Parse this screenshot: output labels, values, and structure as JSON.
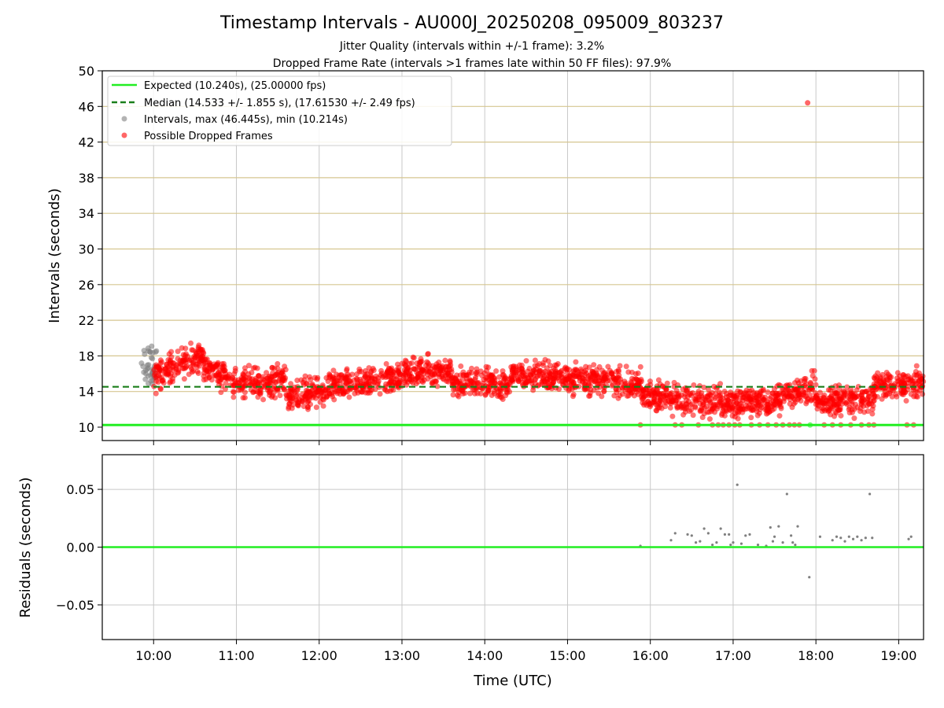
{
  "chart_data": {
    "type": "scatter",
    "title": "Timestamp Intervals - AU000J_20250208_095009_803237",
    "subtitle_lines": [
      "Jitter Quality (intervals within +/-1 frame): 3.2%",
      "Dropped Frame Rate (intervals >1 frames late within 50 FF files): 97.9%"
    ],
    "xlabel": "Time (UTC)",
    "x_ticks": [
      "10:00",
      "11:00",
      "12:00",
      "13:00",
      "14:00",
      "15:00",
      "16:00",
      "17:00",
      "18:00",
      "19:00"
    ],
    "x_range_hours": [
      9.38,
      19.3
    ],
    "colors": {
      "expected": "#22ee22",
      "median": "#1a7f1a",
      "intervals": "#808080",
      "dropped": "#ff0000",
      "band": "#d6c690",
      "grid": "#c8c8c8"
    },
    "top_panel": {
      "ylabel": "Intervals (seconds)",
      "ylim": [
        8.5,
        50
      ],
      "y_ticks": [
        10,
        14,
        18,
        22,
        26,
        30,
        34,
        38,
        42,
        46,
        50
      ],
      "expected_line": 10.24,
      "median_line": 14.533,
      "legend": [
        "Expected (10.240s), (25.00000 fps)",
        "Median (14.533 +/- 1.855 s), (17.61530 +/- 2.49 fps)",
        "Intervals, max (46.445s), min (10.214s)",
        "Possible Dropped Frames"
      ],
      "legend_position": "upper-left",
      "outlier_points": [
        {
          "t": 17.9,
          "v": 46.4
        }
      ],
      "gray_cluster": {
        "t_range": [
          9.85,
          10.05
        ],
        "v_range": [
          14.8,
          19.1
        ]
      },
      "trend_segments": [
        {
          "t0": 10.0,
          "t1": 10.3,
          "v0": 15.4,
          "v1": 17.2
        },
        {
          "t0": 10.3,
          "t1": 10.6,
          "v0": 17.2,
          "v1": 17.8
        },
        {
          "t0": 10.6,
          "t1": 11.0,
          "v0": 17.0,
          "v1": 15.0
        },
        {
          "t0": 11.0,
          "t1": 11.6,
          "v0": 15.0,
          "v1": 15.3
        },
        {
          "t0": 11.6,
          "t1": 12.1,
          "v0": 13.2,
          "v1": 14.2
        },
        {
          "t0": 12.1,
          "t1": 13.0,
          "v0": 14.5,
          "v1": 15.5
        },
        {
          "t0": 13.0,
          "t1": 13.6,
          "v0": 16.0,
          "v1": 16.3
        },
        {
          "t0": 13.6,
          "t1": 14.3,
          "v0": 15.2,
          "v1": 14.8
        },
        {
          "t0": 14.3,
          "t1": 15.2,
          "v0": 15.8,
          "v1": 15.5
        },
        {
          "t0": 15.2,
          "t1": 15.9,
          "v0": 15.3,
          "v1": 14.8
        },
        {
          "t0": 15.9,
          "t1": 16.5,
          "v0": 13.8,
          "v1": 13.0
        },
        {
          "t0": 16.5,
          "t1": 17.5,
          "v0": 12.8,
          "v1": 12.8
        },
        {
          "t0": 17.5,
          "t1": 18.0,
          "v0": 13.0,
          "v1": 14.5
        },
        {
          "t0": 18.0,
          "t1": 18.7,
          "v0": 12.8,
          "v1": 13.2
        },
        {
          "t0": 18.7,
          "t1": 19.3,
          "v0": 14.5,
          "v1": 15.0
        }
      ],
      "bottom_dropped_points": [
        15.88,
        16.3,
        16.38,
        16.58,
        16.75,
        16.82,
        16.88,
        16.95,
        17.02,
        17.08,
        17.22,
        17.32,
        17.42,
        17.52,
        17.6,
        17.68,
        17.74,
        17.8,
        18.1,
        18.2,
        18.3,
        18.42,
        18.55,
        18.64,
        18.7,
        19.1,
        19.18
      ]
    },
    "bottom_panel": {
      "ylabel": "Residuals (seconds)",
      "ylim": [
        -0.08,
        0.08
      ],
      "y_ticks": [
        "0.05",
        "0.00",
        "−0.05"
      ],
      "y_tick_values": [
        0.05,
        0.0,
        -0.05
      ],
      "zero_line": 0.0,
      "points": [
        {
          "t": 15.88,
          "v": 0.001
        },
        {
          "t": 16.25,
          "v": 0.006
        },
        {
          "t": 16.3,
          "v": 0.012
        },
        {
          "t": 16.45,
          "v": 0.011
        },
        {
          "t": 16.5,
          "v": 0.01
        },
        {
          "t": 16.55,
          "v": 0.004
        },
        {
          "t": 16.6,
          "v": 0.005
        },
        {
          "t": 16.65,
          "v": 0.016
        },
        {
          "t": 16.7,
          "v": 0.012
        },
        {
          "t": 16.75,
          "v": 0.002
        },
        {
          "t": 16.8,
          "v": 0.004
        },
        {
          "t": 16.85,
          "v": 0.016
        },
        {
          "t": 16.9,
          "v": 0.011
        },
        {
          "t": 16.95,
          "v": 0.011
        },
        {
          "t": 16.97,
          "v": 0.002
        },
        {
          "t": 17.0,
          "v": 0.004
        },
        {
          "t": 17.05,
          "v": 0.054
        },
        {
          "t": 17.1,
          "v": 0.003
        },
        {
          "t": 17.15,
          "v": 0.01
        },
        {
          "t": 17.2,
          "v": 0.011
        },
        {
          "t": 17.3,
          "v": 0.002
        },
        {
          "t": 17.4,
          "v": 0.001
        },
        {
          "t": 17.45,
          "v": 0.017
        },
        {
          "t": 17.48,
          "v": 0.005
        },
        {
          "t": 17.5,
          "v": 0.009
        },
        {
          "t": 17.55,
          "v": 0.018
        },
        {
          "t": 17.6,
          "v": 0.004
        },
        {
          "t": 17.65,
          "v": 0.046
        },
        {
          "t": 17.7,
          "v": 0.01
        },
        {
          "t": 17.72,
          "v": 0.004
        },
        {
          "t": 17.75,
          "v": 0.002
        },
        {
          "t": 17.78,
          "v": 0.018
        },
        {
          "t": 17.92,
          "v": -0.026
        },
        {
          "t": 18.05,
          "v": 0.009
        },
        {
          "t": 18.2,
          "v": 0.006
        },
        {
          "t": 18.25,
          "v": 0.009
        },
        {
          "t": 18.3,
          "v": 0.008
        },
        {
          "t": 18.35,
          "v": 0.005
        },
        {
          "t": 18.4,
          "v": 0.009
        },
        {
          "t": 18.45,
          "v": 0.007
        },
        {
          "t": 18.5,
          "v": 0.009
        },
        {
          "t": 18.55,
          "v": 0.006
        },
        {
          "t": 18.6,
          "v": 0.008
        },
        {
          "t": 18.65,
          "v": 0.046
        },
        {
          "t": 18.68,
          "v": 0.008
        },
        {
          "t": 19.12,
          "v": 0.007
        },
        {
          "t": 19.15,
          "v": 0.009
        }
      ]
    }
  }
}
